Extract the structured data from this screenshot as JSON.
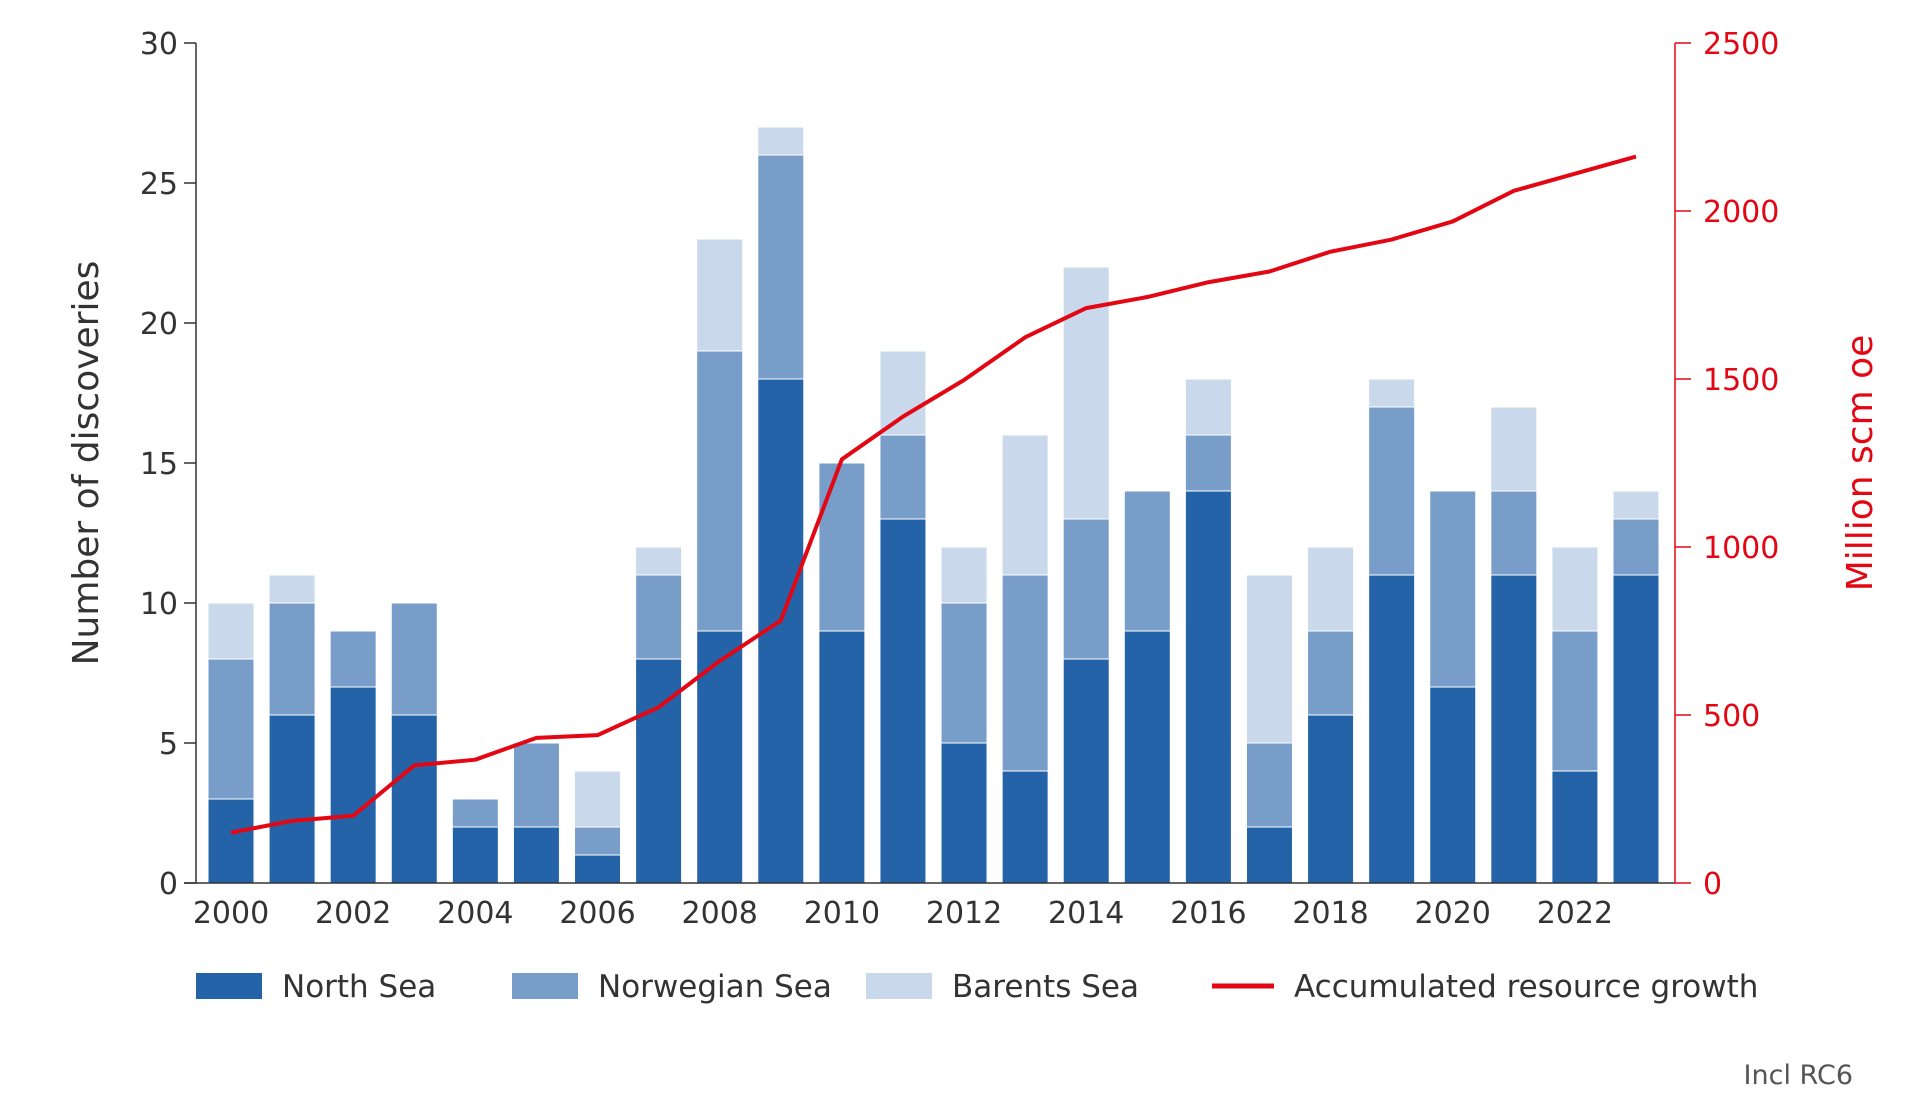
{
  "chart_data": {
    "type": "bar",
    "stacked": true,
    "categories": [
      "2000",
      "2001",
      "2002",
      "2003",
      "2004",
      "2005",
      "2006",
      "2007",
      "2008",
      "2009",
      "2010",
      "2011",
      "2012",
      "2013",
      "2014",
      "2015",
      "2016",
      "2017",
      "2018",
      "2019",
      "2020",
      "2021",
      "2022",
      "2023"
    ],
    "x_tick_labels": [
      "2000",
      "2002",
      "2004",
      "2006",
      "2008",
      "2010",
      "2012",
      "2014",
      "2016",
      "2018",
      "2020",
      "2022"
    ],
    "series": [
      {
        "name": "North Sea",
        "color": "#2563a8",
        "values": [
          3,
          6,
          7,
          6,
          2,
          2,
          1,
          8,
          9,
          18,
          9,
          13,
          5,
          4,
          8,
          9,
          14,
          2,
          6,
          11,
          7,
          11,
          4,
          11
        ]
      },
      {
        "name": "Norwegian Sea",
        "color": "#789dc9",
        "values": [
          5,
          4,
          2,
          4,
          1,
          3,
          1,
          3,
          10,
          8,
          6,
          3,
          5,
          7,
          5,
          5,
          2,
          3,
          3,
          6,
          7,
          3,
          5,
          2
        ]
      },
      {
        "name": "Barents Sea",
        "color": "#c9d8ea",
        "values": [
          2,
          1,
          0,
          0,
          0,
          0,
          2,
          1,
          4,
          1,
          0,
          3,
          2,
          5,
          9,
          0,
          2,
          6,
          3,
          1,
          0,
          3,
          3,
          1
        ]
      }
    ],
    "line_series": {
      "name": "Accumulated resource growth",
      "color": "#e30613",
      "axis": "right",
      "values": [
        150,
        185,
        200,
        350,
        367,
        432,
        440,
        523,
        661,
        781,
        1261,
        1388,
        1497,
        1624,
        1711,
        1744,
        1788,
        1820,
        1879,
        1915,
        1969,
        2060,
        2111,
        2162
      ]
    },
    "ylabel": "Number of discoveries",
    "ylim": [
      0,
      30
    ],
    "y_ticks": [
      "0",
      "5",
      "10",
      "15",
      "20",
      "25",
      "30"
    ],
    "y2label": "Million scm oe",
    "y2lim": [
      0,
      2500
    ],
    "y2_ticks": [
      "0",
      "500",
      "1000",
      "1500",
      "2000",
      "2500"
    ],
    "grid": false,
    "legend_placement": "bottom",
    "footnote": "Incl RC6"
  }
}
